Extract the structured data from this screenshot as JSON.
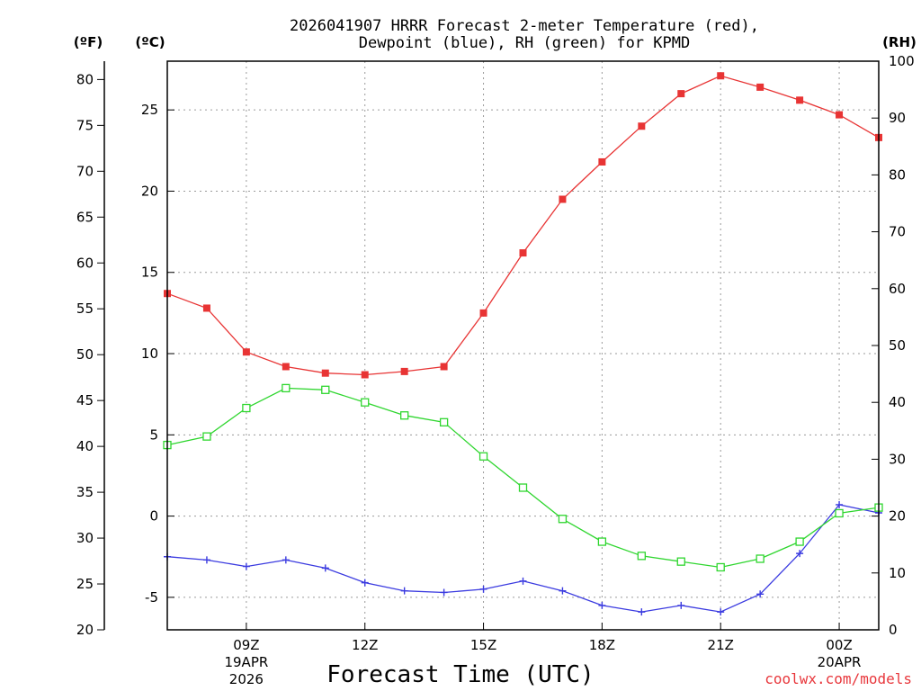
{
  "chart_data": {
    "type": "line",
    "title_lines": [
      "2026041907 HRRR Forecast 2-meter Temperature (red),",
      "Dewpoint (blue), RH (green) for KPMD"
    ],
    "xlabel": "Forecast Time (UTC)",
    "credit": "coolwx.com/models",
    "units": {
      "fahrenheit": "(ºF)",
      "celsius": "(ºC)",
      "rh": "(RH)"
    },
    "x": [
      7,
      8,
      9,
      10,
      11,
      12,
      13,
      14,
      15,
      16,
      17,
      18,
      19,
      20,
      21,
      22,
      23,
      24,
      25
    ],
    "xlim": [
      7,
      25
    ],
    "x_ticks": [
      {
        "x": 9,
        "lines": [
          "09Z",
          "19APR",
          "2026"
        ]
      },
      {
        "x": 12,
        "lines": [
          "12Z"
        ]
      },
      {
        "x": 15,
        "lines": [
          "15Z"
        ]
      },
      {
        "x": 18,
        "lines": [
          "18Z"
        ]
      },
      {
        "x": 21,
        "lines": [
          "21Z"
        ]
      },
      {
        "x": 24,
        "lines": [
          "00Z",
          "20APR"
        ]
      }
    ],
    "celsius_axis": {
      "ylim": [
        -7,
        28
      ],
      "ticks": [
        -5,
        0,
        5,
        10,
        15,
        20,
        25
      ]
    },
    "fahrenheit_axis": {
      "ylim": [
        20,
        82
      ],
      "ticks": [
        20,
        25,
        30,
        35,
        40,
        45,
        50,
        55,
        60,
        65,
        70,
        75,
        80
      ]
    },
    "rh_axis": {
      "ylim": [
        0,
        100
      ],
      "ticks": [
        0,
        10,
        20,
        30,
        40,
        50,
        60,
        70,
        80,
        90,
        100
      ]
    },
    "series": [
      {
        "name": "Temperature",
        "color": "#e83434",
        "axis": "celsius",
        "marker": "filled-square",
        "values": [
          13.7,
          12.8,
          10.1,
          9.2,
          8.8,
          8.7,
          8.9,
          9.2,
          12.5,
          16.2,
          19.5,
          21.8,
          24.0,
          26.0,
          27.1,
          26.4,
          25.6,
          24.7,
          23.3
        ]
      },
      {
        "name": "Dewpoint",
        "color": "#3b3be0",
        "axis": "celsius",
        "marker": "plus",
        "values": [
          -2.5,
          -2.7,
          -3.1,
          -2.7,
          -3.2,
          -4.1,
          -4.6,
          -4.7,
          -4.5,
          -4.0,
          -4.6,
          -5.5,
          -5.9,
          -5.5,
          -5.9,
          -4.8,
          -2.3,
          0.7,
          0.2
        ]
      },
      {
        "name": "RH",
        "color": "#2fd62f",
        "axis": "rh",
        "marker": "open-square",
        "values": [
          32.5,
          34,
          39,
          42.5,
          42.2,
          40,
          37.7,
          36.5,
          30.5,
          25,
          19.5,
          15.5,
          13,
          12,
          11,
          12.5,
          15.5,
          20.5,
          21.5
        ]
      }
    ]
  }
}
